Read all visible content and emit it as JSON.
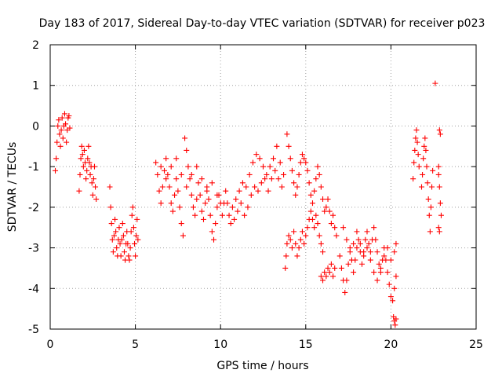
{
  "chart_data": {
    "type": "scatter",
    "title": "Day 183 of 2017, Sidereal Day-to-day VTEC variation (SDTVAR) for receiver p023",
    "xlabel": "GPS time / hours",
    "ylabel": "SDTVAR / TECUs",
    "xlim": [
      0,
      25
    ],
    "ylim": [
      -5,
      2
    ],
    "xticks": [
      0,
      5,
      10,
      15,
      20,
      25
    ],
    "yticks": [
      -5,
      -4,
      -3,
      -2,
      -1,
      0,
      1,
      2
    ],
    "grid": true,
    "marker": "+",
    "color": "#ff0000",
    "series": [
      {
        "name": "SDTVAR",
        "points": [
          [
            0.3,
            -1.1
          ],
          [
            0.35,
            -0.8
          ],
          [
            0.4,
            -0.4
          ],
          [
            0.45,
            0.0
          ],
          [
            0.5,
            0.15
          ],
          [
            0.55,
            -0.2
          ],
          [
            0.6,
            -0.5
          ],
          [
            0.65,
            -0.1
          ],
          [
            0.7,
            0.2
          ],
          [
            0.75,
            -0.3
          ],
          [
            0.8,
            0.0
          ],
          [
            0.85,
            0.3
          ],
          [
            0.9,
            0.05
          ],
          [
            0.95,
            -0.4
          ],
          [
            1.0,
            -0.1
          ],
          [
            1.05,
            0.2
          ],
          [
            1.1,
            0.25
          ],
          [
            1.15,
            -0.05
          ],
          [
            1.7,
            -1.6
          ],
          [
            1.75,
            -1.2
          ],
          [
            1.8,
            -0.8
          ],
          [
            1.85,
            -0.5
          ],
          [
            1.9,
            -0.7
          ],
          [
            1.95,
            -1.0
          ],
          [
            2.0,
            -0.6
          ],
          [
            2.05,
            -0.9
          ],
          [
            2.1,
            -1.3
          ],
          [
            2.15,
            -1.1
          ],
          [
            2.2,
            -0.8
          ],
          [
            2.25,
            -0.5
          ],
          [
            2.3,
            -0.9
          ],
          [
            2.35,
            -1.2
          ],
          [
            2.4,
            -1.0
          ],
          [
            2.45,
            -1.4
          ],
          [
            2.5,
            -1.7
          ],
          [
            2.55,
            -1.3
          ],
          [
            2.6,
            -1.0
          ],
          [
            2.65,
            -1.5
          ],
          [
            2.7,
            -1.8
          ],
          [
            3.5,
            -1.5
          ],
          [
            3.55,
            -2.0
          ],
          [
            3.6,
            -2.4
          ],
          [
            3.65,
            -2.8
          ],
          [
            3.7,
            -3.1
          ],
          [
            3.75,
            -2.7
          ],
          [
            3.8,
            -2.3
          ],
          [
            3.85,
            -2.6
          ],
          [
            3.9,
            -3.0
          ],
          [
            3.95,
            -3.2
          ],
          [
            4.0,
            -2.8
          ],
          [
            4.05,
            -2.5
          ],
          [
            4.1,
            -2.9
          ],
          [
            4.15,
            -3.2
          ],
          [
            4.2,
            -2.8
          ],
          [
            4.25,
            -2.4
          ],
          [
            4.3,
            -2.7
          ],
          [
            4.35,
            -3.1
          ],
          [
            4.4,
            -3.3
          ],
          [
            4.45,
            -2.9
          ],
          [
            4.5,
            -2.6
          ],
          [
            4.55,
            -2.9
          ],
          [
            4.6,
            -3.2
          ],
          [
            4.65,
            -3.3
          ],
          [
            4.7,
            -3.0
          ],
          [
            4.75,
            -2.6
          ],
          [
            4.8,
            -2.2
          ],
          [
            4.85,
            -2.0
          ],
          [
            4.9,
            -2.5
          ],
          [
            4.95,
            -2.9
          ],
          [
            5.0,
            -3.2
          ],
          [
            5.05,
            -2.7
          ],
          [
            5.1,
            -2.3
          ],
          [
            5.15,
            -2.8
          ],
          [
            6.2,
            -0.9
          ],
          [
            6.3,
            -1.2
          ],
          [
            6.4,
            -1.6
          ],
          [
            6.5,
            -1.9
          ],
          [
            6.6,
            -1.5
          ],
          [
            6.7,
            -1.1
          ],
          [
            6.8,
            -0.8
          ],
          [
            6.9,
            -1.2
          ],
          [
            7.0,
            -1.5
          ],
          [
            7.1,
            -1.9
          ],
          [
            7.2,
            -2.1
          ],
          [
            7.3,
            -1.7
          ],
          [
            7.4,
            -1.3
          ],
          [
            7.5,
            -1.6
          ],
          [
            7.6,
            -2.0
          ],
          [
            7.7,
            -2.4
          ],
          [
            7.8,
            -2.7
          ],
          [
            7.9,
            -0.3
          ],
          [
            8.0,
            -0.6
          ],
          [
            8.1,
            -1.0
          ],
          [
            8.2,
            -1.3
          ],
          [
            8.3,
            -1.7
          ],
          [
            8.4,
            -2.0
          ],
          [
            8.5,
            -2.2
          ],
          [
            8.6,
            -1.8
          ],
          [
            8.7,
            -1.4
          ],
          [
            8.8,
            -1.7
          ],
          [
            8.9,
            -2.1
          ],
          [
            9.0,
            -2.3
          ],
          [
            9.1,
            -1.9
          ],
          [
            9.2,
            -1.5
          ],
          [
            9.3,
            -1.8
          ],
          [
            9.4,
            -2.2
          ],
          [
            9.5,
            -2.6
          ],
          [
            9.6,
            -2.8
          ],
          [
            9.7,
            -2.4
          ],
          [
            9.8,
            -2.0
          ],
          [
            9.9,
            -1.7
          ],
          [
            10.0,
            -1.9
          ],
          [
            10.1,
            -2.2
          ],
          [
            10.2,
            -1.9
          ],
          [
            10.3,
            -1.6
          ],
          [
            10.4,
            -1.9
          ],
          [
            10.5,
            -2.2
          ],
          [
            10.6,
            -2.4
          ],
          [
            6.5,
            -1.0
          ],
          [
            6.8,
            -1.3
          ],
          [
            7.1,
            -1.0
          ],
          [
            7.4,
            -0.8
          ],
          [
            7.7,
            -1.2
          ],
          [
            8.0,
            -1.5
          ],
          [
            8.3,
            -1.2
          ],
          [
            8.6,
            -1.0
          ],
          [
            8.9,
            -1.3
          ],
          [
            9.2,
            -1.6
          ],
          [
            9.5,
            -1.4
          ],
          [
            9.8,
            -1.7
          ],
          [
            10.7,
            -2.0
          ],
          [
            10.9,
            -1.8
          ],
          [
            11.1,
            -1.6
          ],
          [
            11.3,
            -1.4
          ],
          [
            11.5,
            -1.5
          ],
          [
            11.7,
            -1.2
          ],
          [
            11.9,
            -0.9
          ],
          [
            12.1,
            -0.7
          ],
          [
            12.3,
            -0.8
          ],
          [
            12.5,
            -1.0
          ],
          [
            12.7,
            -1.2
          ],
          [
            12.9,
            -1.0
          ],
          [
            13.1,
            -0.8
          ],
          [
            13.3,
            -0.5
          ],
          [
            13.5,
            -0.9
          ],
          [
            13.7,
            -1.2
          ],
          [
            10.8,
            -2.3
          ],
          [
            11.0,
            -2.1
          ],
          [
            11.2,
            -1.9
          ],
          [
            11.4,
            -2.2
          ],
          [
            11.6,
            -2.0
          ],
          [
            11.8,
            -1.7
          ],
          [
            12.0,
            -1.5
          ],
          [
            12.2,
            -1.6
          ],
          [
            12.4,
            -1.4
          ],
          [
            12.6,
            -1.3
          ],
          [
            12.8,
            -1.6
          ],
          [
            13.0,
            -1.3
          ],
          [
            13.2,
            -1.1
          ],
          [
            13.4,
            -1.3
          ],
          [
            13.6,
            -1.5
          ],
          [
            13.8,
            -3.5
          ],
          [
            13.85,
            -3.2
          ],
          [
            13.9,
            -2.9
          ],
          [
            14.0,
            -2.7
          ],
          [
            14.1,
            -2.8
          ],
          [
            14.2,
            -3.0
          ],
          [
            14.3,
            -2.6
          ],
          [
            14.4,
            -2.9
          ],
          [
            14.5,
            -3.2
          ],
          [
            14.6,
            -3.0
          ],
          [
            14.7,
            -2.8
          ],
          [
            14.8,
            -2.6
          ],
          [
            14.9,
            -2.9
          ],
          [
            15.0,
            -2.7
          ],
          [
            15.1,
            -2.5
          ],
          [
            15.2,
            -2.3
          ],
          [
            15.3,
            -2.1
          ],
          [
            15.4,
            -2.3
          ],
          [
            15.5,
            -2.5
          ],
          [
            15.6,
            -2.2
          ],
          [
            15.7,
            -2.4
          ],
          [
            15.8,
            -2.7
          ],
          [
            15.9,
            -2.9
          ],
          [
            16.0,
            -3.1
          ],
          [
            13.9,
            -0.2
          ],
          [
            14.0,
            -0.5
          ],
          [
            14.1,
            -0.8
          ],
          [
            14.2,
            -1.1
          ],
          [
            14.3,
            -1.4
          ],
          [
            14.4,
            -1.7
          ],
          [
            14.5,
            -1.5
          ],
          [
            14.6,
            -1.2
          ],
          [
            14.7,
            -0.9
          ],
          [
            14.8,
            -0.7
          ],
          [
            14.9,
            -0.8
          ],
          [
            15.0,
            -0.9
          ],
          [
            15.1,
            -1.1
          ],
          [
            15.2,
            -1.4
          ],
          [
            15.3,
            -1.7
          ],
          [
            15.4,
            -1.9
          ],
          [
            15.5,
            -1.6
          ],
          [
            15.6,
            -1.3
          ],
          [
            15.7,
            -1.0
          ],
          [
            15.8,
            -1.2
          ],
          [
            15.9,
            -1.5
          ],
          [
            16.0,
            -1.8
          ],
          [
            16.1,
            -2.1
          ],
          [
            16.2,
            -2.0
          ],
          [
            16.3,
            -1.8
          ],
          [
            16.4,
            -2.1
          ],
          [
            16.5,
            -2.4
          ],
          [
            16.6,
            -2.2
          ],
          [
            16.7,
            -2.5
          ],
          [
            16.8,
            -2.7
          ],
          [
            15.9,
            -3.7
          ],
          [
            16.0,
            -3.8
          ],
          [
            16.1,
            -3.6
          ],
          [
            16.2,
            -3.7
          ],
          [
            16.3,
            -3.5
          ],
          [
            16.4,
            -3.6
          ],
          [
            16.5,
            -3.4
          ],
          [
            16.6,
            -3.7
          ],
          [
            16.7,
            -3.5
          ],
          [
            17.0,
            -3.2
          ],
          [
            17.1,
            -3.5
          ],
          [
            17.2,
            -3.8
          ],
          [
            17.3,
            -4.1
          ],
          [
            17.4,
            -3.8
          ],
          [
            17.5,
            -3.4
          ],
          [
            17.6,
            -3.0
          ],
          [
            17.7,
            -3.3
          ],
          [
            17.8,
            -3.6
          ],
          [
            17.9,
            -3.3
          ],
          [
            18.0,
            -3.0
          ],
          [
            18.1,
            -2.8
          ],
          [
            18.2,
            -3.1
          ],
          [
            18.3,
            -3.4
          ],
          [
            18.4,
            -3.1
          ],
          [
            18.5,
            -2.8
          ],
          [
            18.6,
            -2.6
          ],
          [
            18.7,
            -2.9
          ],
          [
            18.8,
            -3.1
          ],
          [
            18.9,
            -2.8
          ],
          [
            19.0,
            -2.5
          ],
          [
            19.1,
            -2.8
          ],
          [
            19.2,
            -3.1
          ],
          [
            19.3,
            -3.4
          ],
          [
            19.4,
            -3.6
          ],
          [
            19.5,
            -3.3
          ],
          [
            19.6,
            -3.0
          ],
          [
            19.7,
            -3.3
          ],
          [
            19.8,
            -3.6
          ],
          [
            19.9,
            -3.9
          ],
          [
            20.0,
            -4.2
          ],
          [
            20.1,
            -4.3
          ],
          [
            20.2,
            -4.0
          ],
          [
            20.3,
            -3.7
          ],
          [
            17.2,
            -2.5
          ],
          [
            17.4,
            -2.8
          ],
          [
            17.6,
            -3.1
          ],
          [
            17.8,
            -2.9
          ],
          [
            18.0,
            -2.6
          ],
          [
            18.2,
            -2.9
          ],
          [
            18.4,
            -3.2
          ],
          [
            18.6,
            -3.0
          ],
          [
            18.8,
            -3.3
          ],
          [
            19.0,
            -3.6
          ],
          [
            19.2,
            -3.8
          ],
          [
            19.4,
            -3.5
          ],
          [
            19.6,
            -3.2
          ],
          [
            19.8,
            -3.0
          ],
          [
            20.0,
            -3.3
          ],
          [
            20.2,
            -3.1
          ],
          [
            20.3,
            -2.9
          ],
          [
            20.15,
            -4.7
          ],
          [
            20.2,
            -4.8
          ],
          [
            20.25,
            -4.9
          ],
          [
            20.3,
            -4.75
          ],
          [
            21.3,
            -1.3
          ],
          [
            21.35,
            -0.9
          ],
          [
            21.4,
            -0.6
          ],
          [
            21.45,
            -0.3
          ],
          [
            21.5,
            -0.1
          ],
          [
            21.55,
            -0.4
          ],
          [
            21.6,
            -0.7
          ],
          [
            21.65,
            -1.0
          ],
          [
            21.8,
            -1.5
          ],
          [
            21.85,
            -1.2
          ],
          [
            21.9,
            -0.8
          ],
          [
            21.95,
            -0.5
          ],
          [
            22.0,
            -0.3
          ],
          [
            22.05,
            -0.6
          ],
          [
            22.1,
            -1.0
          ],
          [
            22.15,
            -1.4
          ],
          [
            22.2,
            -1.8
          ],
          [
            22.25,
            -2.2
          ],
          [
            22.3,
            -2.6
          ],
          [
            22.35,
            -2.0
          ],
          [
            22.4,
            -1.5
          ],
          [
            22.45,
            -1.1
          ],
          [
            22.6,
            1.05
          ],
          [
            22.8,
            -1.2
          ],
          [
            22.85,
            -1.5
          ],
          [
            22.9,
            -1.9
          ],
          [
            22.95,
            -2.2
          ],
          [
            22.8,
            -2.5
          ],
          [
            22.85,
            -2.6
          ],
          [
            22.9,
            -0.2
          ],
          [
            22.85,
            -0.1
          ],
          [
            22.8,
            -1.0
          ]
        ]
      }
    ]
  }
}
